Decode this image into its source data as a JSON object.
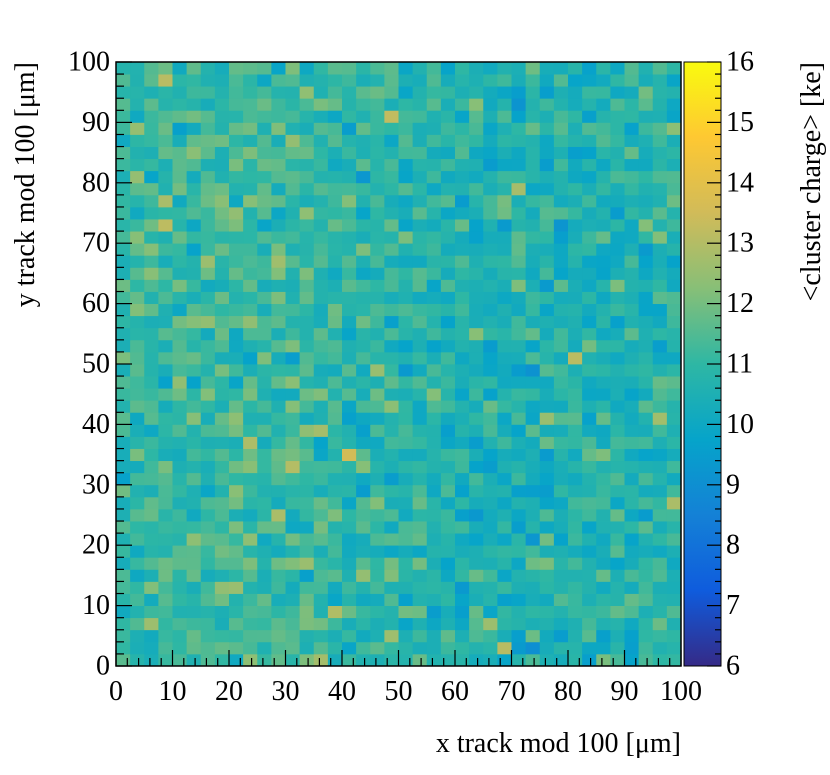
{
  "chart_data": {
    "type": "heatmap",
    "title": "",
    "xlabel": "x track mod 100 [μm]",
    "ylabel": "y track mod 100 [μm]",
    "zlabel": "<cluster charge> [ke]",
    "xlim": [
      0,
      100
    ],
    "ylim": [
      0,
      100
    ],
    "zlim": [
      6,
      16
    ],
    "x_ticks": [
      0,
      10,
      20,
      30,
      40,
      50,
      60,
      70,
      80,
      90,
      100
    ],
    "y_ticks": [
      0,
      10,
      20,
      30,
      40,
      50,
      60,
      70,
      80,
      90,
      100
    ],
    "z_ticks": [
      6,
      7,
      8,
      9,
      10,
      11,
      12,
      13,
      14,
      15,
      16
    ],
    "bins": {
      "nx": 40,
      "ny": 50,
      "x_width": 2.5,
      "y_width": 2.0
    },
    "value_range_observed": [
      9.0,
      14.0
    ],
    "typical_value": 10.8,
    "colormap": [
      "#352a87",
      "#0f5cdd",
      "#1481d6",
      "#06a4ca",
      "#2eb7a4",
      "#87bf77",
      "#d1bb59",
      "#fec832",
      "#f9fb0e"
    ],
    "grid": false
  }
}
